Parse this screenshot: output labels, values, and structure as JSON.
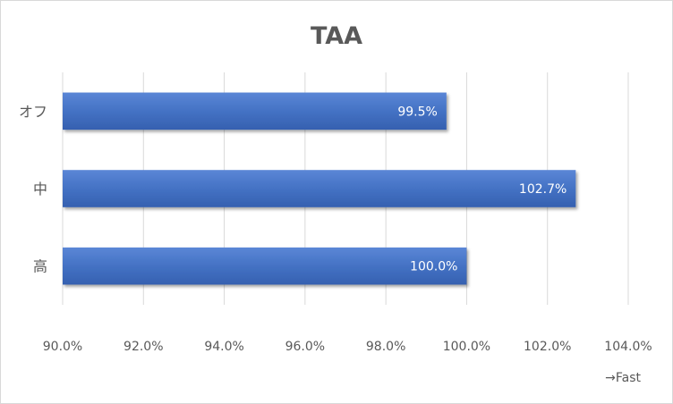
{
  "chart_data": {
    "type": "bar",
    "orientation": "horizontal",
    "title": "TAA",
    "categories": [
      "オフ",
      "中",
      "高"
    ],
    "values": [
      99.5,
      102.7,
      100.0
    ],
    "data_labels": [
      "99.5%",
      "102.7%",
      "100.0%"
    ],
    "xlim": [
      90,
      104
    ],
    "x_ticks": [
      90,
      92,
      94,
      96,
      98,
      100,
      102,
      104
    ],
    "x_tick_labels": [
      "90.0%",
      "92.0%",
      "94.0%",
      "96.0%",
      "98.0%",
      "100.0%",
      "102.0%",
      "104.0%"
    ],
    "xlabel": "→Fast",
    "ylabel": "",
    "grid": "vertical",
    "legend": "none",
    "bar_color": "#4472c4"
  }
}
